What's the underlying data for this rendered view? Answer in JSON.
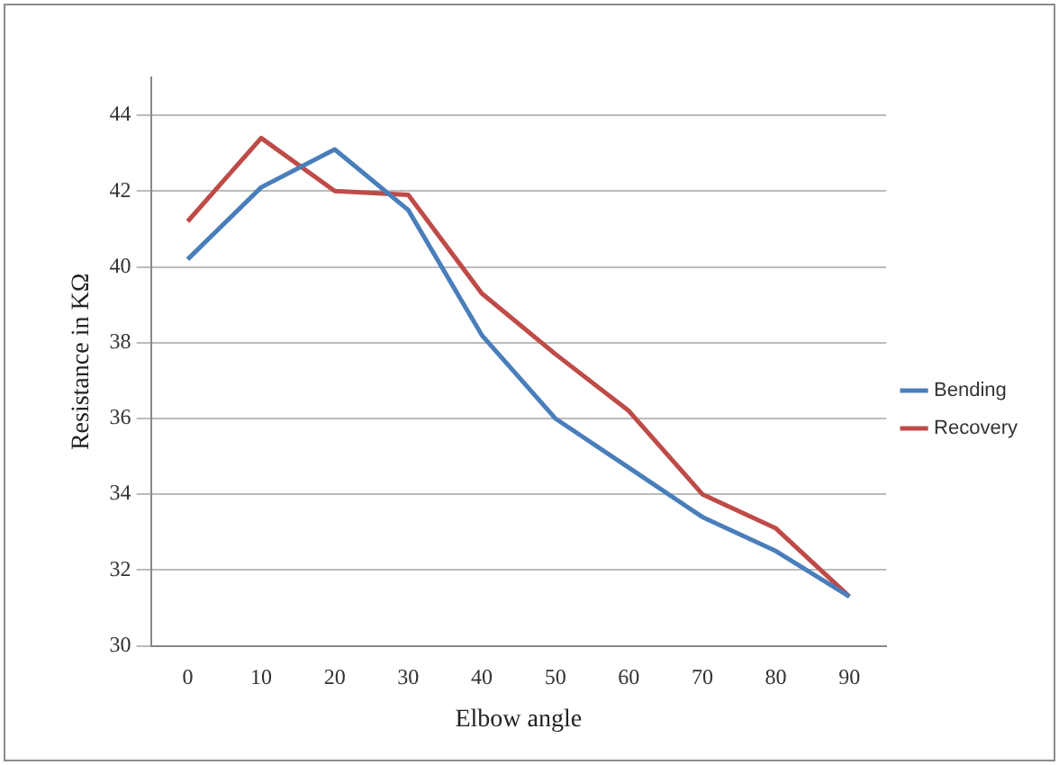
{
  "chart_data": {
    "type": "line",
    "xlabel": "Elbow angle",
    "ylabel": "Resistance in KΩ",
    "categories": [
      "0",
      "10",
      "20",
      "30",
      "40",
      "50",
      "60",
      "70",
      "80",
      "90"
    ],
    "series": [
      {
        "name": "Bending",
        "color": "#4a7ebb",
        "values": [
          40.2,
          42.1,
          43.1,
          41.5,
          38.2,
          36.0,
          34.7,
          33.4,
          32.5,
          31.3
        ]
      },
      {
        "name": "Recovery",
        "color": "#be4b48",
        "values": [
          41.2,
          43.4,
          42.0,
          41.9,
          39.3,
          37.7,
          36.2,
          34.0,
          33.1,
          31.3
        ]
      }
    ],
    "ylim": [
      30,
      45
    ],
    "yticks": [
      30,
      32,
      34,
      36,
      38,
      40,
      42,
      44
    ],
    "grid": "y",
    "legend": "right",
    "marker": "none",
    "line_style": "solid"
  }
}
